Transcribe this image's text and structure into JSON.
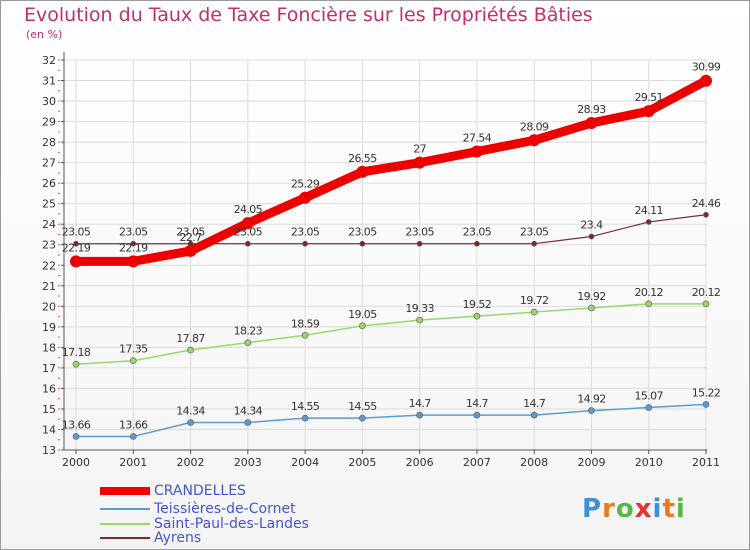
{
  "title": "Evolution du Taux de Taxe Foncière sur les Propriétés Bâties",
  "subtitle": "(en %)",
  "logo": {
    "text": "Proxiti",
    "colors": [
      "#3d8fd6",
      "#e87a1e",
      "#58b847",
      "#e4302f",
      "#3d8fd6",
      "#e87a1e",
      "#58b847"
    ]
  },
  "chart_data": {
    "type": "line",
    "title": "Evolution du Taux de Taxe Foncière sur les Propriétés Bâties",
    "ylabel": "(en %)",
    "xlabel": "",
    "ylim": [
      13,
      32
    ],
    "yticks": [
      13,
      14,
      15,
      16,
      17,
      18,
      19,
      20,
      21,
      22,
      23,
      24,
      25,
      26,
      27,
      28,
      29,
      30,
      31,
      32
    ],
    "grid": true,
    "categories": [
      "2000",
      "2001",
      "2002",
      "2003",
      "2004",
      "2005",
      "2006",
      "2007",
      "2008",
      "2009",
      "2010",
      "2011"
    ],
    "series": [
      {
        "name": "CRANDELLES",
        "color": "#ee0000",
        "values": [
          22.19,
          22.19,
          22.7,
          24.05,
          25.29,
          26.55,
          27,
          27.54,
          28.09,
          28.93,
          29.51,
          30.99
        ],
        "labels": [
          "22.19",
          "22.19",
          "22.7",
          "24.05",
          "25.29",
          "26.55",
          "27",
          "27.54",
          "28.09",
          "28.93",
          "29.51",
          "30.99"
        ]
      },
      {
        "name": "Teissières-de-Cornet",
        "color": "#5b9bd0",
        "values": [
          13.66,
          13.66,
          14.34,
          14.34,
          14.55,
          14.55,
          14.7,
          14.7,
          14.7,
          14.92,
          15.07,
          15.22
        ],
        "labels": [
          "13.66",
          "13.66",
          "14.34",
          "14.34",
          "14.55",
          "14.55",
          "14.7",
          "14.7",
          "14.7",
          "14.92",
          "15.07",
          "15.22"
        ]
      },
      {
        "name": "Saint-Paul-des-Landes",
        "color": "#99d66b",
        "values": [
          17.18,
          17.35,
          17.87,
          18.23,
          18.59,
          19.05,
          19.33,
          19.52,
          19.72,
          19.92,
          20.12,
          20.12
        ],
        "labels": [
          "17.18",
          "17.35",
          "17.87",
          "18.23",
          "18.59",
          "19.05",
          "19.33",
          "19.52",
          "19.72",
          "19.92",
          "20.12",
          "20.12"
        ]
      },
      {
        "name": "Ayrens",
        "color": "#7a2a2a",
        "values": [
          23.05,
          23.05,
          23.05,
          23.05,
          23.05,
          23.05,
          23.05,
          23.05,
          23.05,
          23.4,
          24.11,
          24.46
        ],
        "labels": [
          "23.05",
          "23.05",
          "23.05",
          "23.05",
          "23.05",
          "23.05",
          "23.05",
          "23.05",
          "23.05",
          "23.4",
          "24.11",
          "24.46"
        ]
      }
    ]
  }
}
